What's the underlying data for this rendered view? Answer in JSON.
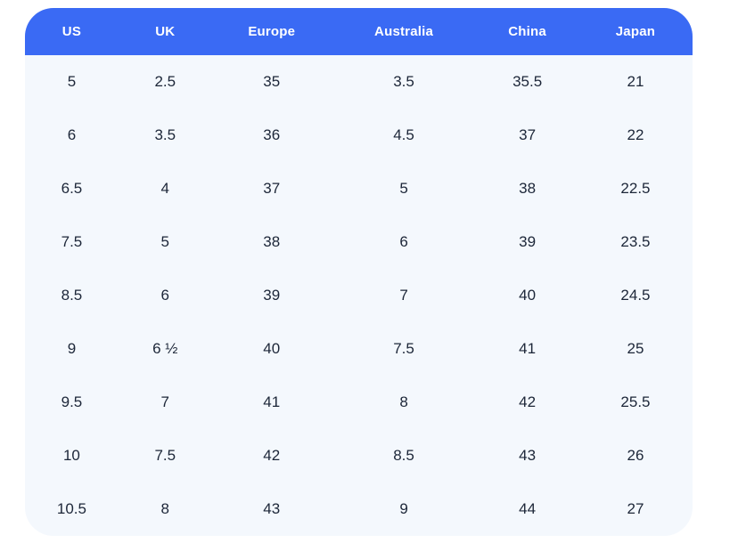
{
  "chart_data": {
    "type": "table",
    "columns": [
      "US",
      "UK",
      "Europe",
      "Australia",
      "China",
      "Japan"
    ],
    "rows": [
      [
        "5",
        "2.5",
        "35",
        "3.5",
        "35.5",
        "21"
      ],
      [
        "6",
        "3.5",
        "36",
        "4.5",
        "37",
        "22"
      ],
      [
        "6.5",
        "4",
        "37",
        "5",
        "38",
        "22.5"
      ],
      [
        "7.5",
        "5",
        "38",
        "6",
        "39",
        "23.5"
      ],
      [
        "8.5",
        "6",
        "39",
        "7",
        "40",
        "24.5"
      ],
      [
        "9",
        "6 ½",
        "40",
        "7.5",
        "41",
        "25"
      ],
      [
        "9.5",
        "7",
        "41",
        "8",
        "42",
        "25.5"
      ],
      [
        "10",
        "7.5",
        "42",
        "8.5",
        "43",
        "26"
      ],
      [
        "10.5",
        "8",
        "43",
        "9",
        "44",
        "27"
      ]
    ],
    "layout": {
      "header_position": "top",
      "grid": false,
      "corner_radius": "rounded"
    }
  },
  "colors": {
    "header_bg": "#3a6af4",
    "header_text": "#ffffff",
    "body_bg": "#f4f8fd",
    "cell_text": "#1c2638",
    "page_bg": "#ffffff"
  }
}
